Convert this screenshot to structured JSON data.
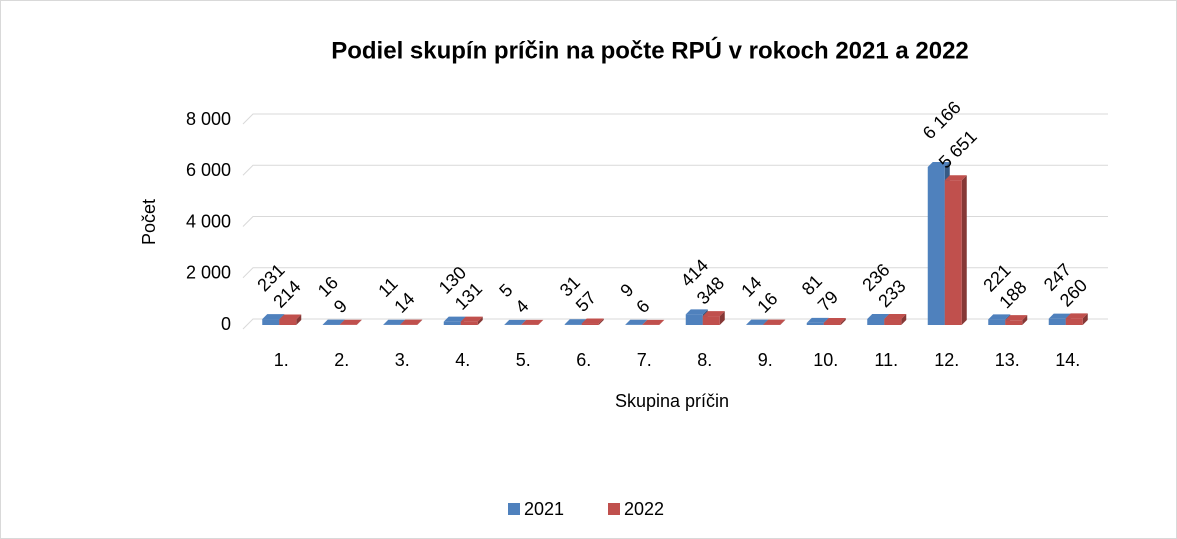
{
  "chart_data": {
    "type": "bar",
    "title": "Podiel skupín príčin na počte RPÚ v rokoch 2021 a 2022",
    "x_label": "Skupina príčin",
    "y_label": "Počet",
    "categories": [
      "1.",
      "2.",
      "3.",
      "4.",
      "5.",
      "6.",
      "7.",
      "8.",
      "9.",
      "10.",
      "11.",
      "12.",
      "13.",
      "14."
    ],
    "series": [
      {
        "name": "2021",
        "color": "#4f81bd",
        "values": [
          231,
          16,
          11,
          130,
          5,
          31,
          9,
          414,
          14,
          81,
          236,
          6166,
          221,
          247
        ],
        "value_labels": [
          "231",
          "16",
          "11",
          "130",
          "5",
          "31",
          "9",
          "414",
          "14",
          "81",
          "236",
          "6 166",
          "221",
          "247"
        ]
      },
      {
        "name": "2022",
        "color": "#c0504d",
        "values": [
          214,
          9,
          14,
          131,
          4,
          57,
          6,
          348,
          16,
          79,
          233,
          5651,
          188,
          260
        ],
        "value_labels": [
          "214",
          "9",
          "14",
          "131",
          "4",
          "57",
          "6",
          "348",
          "16",
          "79",
          "233",
          "5 651",
          "188",
          "260"
        ]
      }
    ],
    "ylim": [
      0,
      8000
    ],
    "yticks": [
      0,
      {
        "value": 2000,
        "label": "2 000"
      },
      {
        "value": 4000,
        "label": "4 000"
      },
      {
        "value": 6000,
        "label": "6 000"
      },
      {
        "value": 8000,
        "label": "8 000"
      }
    ],
    "grid": true,
    "legend": "bottom"
  }
}
